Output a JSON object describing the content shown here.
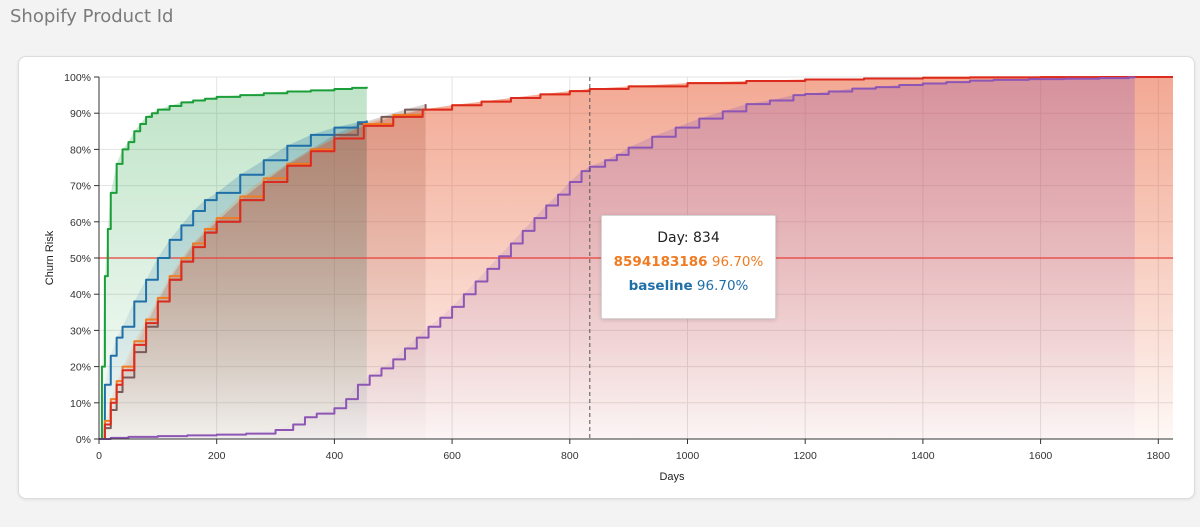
{
  "page": {
    "title": "Shopify Product Id"
  },
  "chart_data": {
    "type": "line",
    "xlabel": "Days",
    "ylabel": "Churn Risk",
    "xlim": [
      0,
      1825
    ],
    "ylim": [
      0,
      100
    ],
    "x_ticks": [
      0,
      200,
      400,
      600,
      800,
      1000,
      1200,
      1400,
      1600,
      1800
    ],
    "y_ticks": [
      "0%",
      "10%",
      "20%",
      "30%",
      "40%",
      "50%",
      "60%",
      "70%",
      "80%",
      "90%",
      "100%"
    ],
    "reference_line": {
      "y": 50,
      "color": "#e8403a"
    },
    "crosshair_x": 834,
    "grid": true,
    "series": [
      {
        "color": "#1b9e3a",
        "x": [
          0,
          5,
          10,
          15,
          20,
          30,
          40,
          50,
          60,
          70,
          80,
          90,
          100,
          120,
          140,
          160,
          180,
          200,
          240,
          280,
          320,
          360,
          400,
          430,
          455
        ],
        "y": [
          0,
          20,
          45,
          58,
          68,
          76,
          80,
          82,
          85,
          87,
          89,
          90,
          91,
          92,
          93,
          93.5,
          94,
          94.5,
          95,
          95.5,
          96,
          96.3,
          96.7,
          97,
          97.3
        ]
      },
      {
        "color": "#7b5a57",
        "x": [
          0,
          10,
          20,
          30,
          40,
          60,
          80,
          100,
          120,
          140,
          160,
          180,
          200,
          240,
          280,
          320,
          360,
          400,
          440,
          480,
          520,
          555
        ],
        "y": [
          0,
          3,
          8,
          13,
          17,
          24,
          31,
          38,
          44,
          49,
          54,
          57,
          60,
          66,
          71,
          76,
          80,
          84,
          87,
          89,
          91,
          92.5
        ]
      },
      {
        "color": "#1f6fa8",
        "x": [
          0,
          10,
          20,
          30,
          40,
          60,
          80,
          100,
          120,
          140,
          160,
          180,
          200,
          240,
          280,
          320,
          360,
          400,
          440,
          455
        ],
        "y": [
          0,
          15,
          23,
          28,
          31,
          38,
          44,
          50,
          55,
          59,
          63,
          66,
          68,
          73,
          77,
          81,
          84,
          86,
          87.5,
          88
        ]
      },
      {
        "color": "#f07b22",
        "x": [
          0,
          10,
          20,
          30,
          40,
          60,
          80,
          100,
          120,
          140,
          160,
          180,
          200,
          240,
          280,
          320,
          360,
          400,
          450,
          500,
          550,
          600,
          650,
          700,
          750,
          800,
          834,
          900,
          1000,
          1100,
          1200,
          1300,
          1400,
          1480,
          1600,
          1700,
          1760,
          1825
        ],
        "y": [
          0,
          5,
          11,
          16,
          20,
          27,
          33,
          39,
          45,
          50,
          54,
          58,
          61,
          67,
          72,
          76,
          80,
          83,
          87,
          89.5,
          91,
          92.2,
          93.2,
          94.2,
          95.2,
          96.1,
          96.7,
          97.4,
          98.3,
          98.9,
          99.3,
          99.6,
          99.8,
          99.9,
          99.95,
          100,
          100,
          100
        ]
      },
      {
        "color": "#dd2a1f",
        "x": [
          0,
          10,
          20,
          30,
          40,
          60,
          80,
          100,
          120,
          140,
          160,
          180,
          200,
          240,
          280,
          320,
          360,
          400,
          450,
          500,
          550,
          600,
          650,
          700,
          750,
          800,
          834,
          900,
          1000,
          1100,
          1200,
          1300,
          1400,
          1480,
          1600,
          1700,
          1760,
          1825
        ],
        "y": [
          0,
          4,
          10,
          15,
          19,
          26,
          32,
          38,
          44,
          49,
          53,
          57,
          60,
          66,
          71,
          75.5,
          79.5,
          83,
          86.5,
          89,
          91,
          92.2,
          93.2,
          94.2,
          95.2,
          96.1,
          96.7,
          97.4,
          98.3,
          98.9,
          99.3,
          99.6,
          99.8,
          99.9,
          99.95,
          100,
          100,
          100
        ]
      },
      {
        "color": "#8d56b5",
        "x": [
          0,
          20,
          50,
          100,
          150,
          200,
          250,
          300,
          330,
          350,
          370,
          400,
          420,
          440,
          460,
          480,
          500,
          520,
          540,
          560,
          580,
          600,
          620,
          640,
          660,
          680,
          700,
          720,
          740,
          760,
          780,
          800,
          820,
          834,
          860,
          880,
          900,
          940,
          980,
          1020,
          1060,
          1100,
          1140,
          1180,
          1200,
          1240,
          1280,
          1320,
          1360,
          1400,
          1440,
          1480,
          1520,
          1580,
          1640,
          1700,
          1750,
          1760
        ],
        "y": [
          0,
          0.3,
          0.6,
          0.8,
          1.0,
          1.2,
          1.5,
          2.5,
          4,
          6,
          7,
          8.5,
          11,
          15,
          17.5,
          19.5,
          22,
          25,
          28,
          31,
          33.5,
          36.5,
          40,
          43.5,
          47,
          50.5,
          54,
          57.5,
          61,
          64.5,
          67.5,
          71,
          74,
          75.2,
          77,
          78.5,
          80.5,
          83.5,
          86,
          88.5,
          90.5,
          92.5,
          93.5,
          95,
          95.3,
          96,
          96.8,
          97.2,
          97.8,
          98.2,
          98.6,
          99,
          99.2,
          99.4,
          99.5,
          99.7,
          99.9,
          100
        ]
      }
    ],
    "tooltip": {
      "day_label": "Day: 834",
      "rows": [
        {
          "name": "8594183186",
          "value": "96.70%",
          "color": "#f07b22"
        },
        {
          "name": "baseline",
          "value": "96.70%",
          "color": "#1f6fa8"
        }
      ]
    }
  }
}
